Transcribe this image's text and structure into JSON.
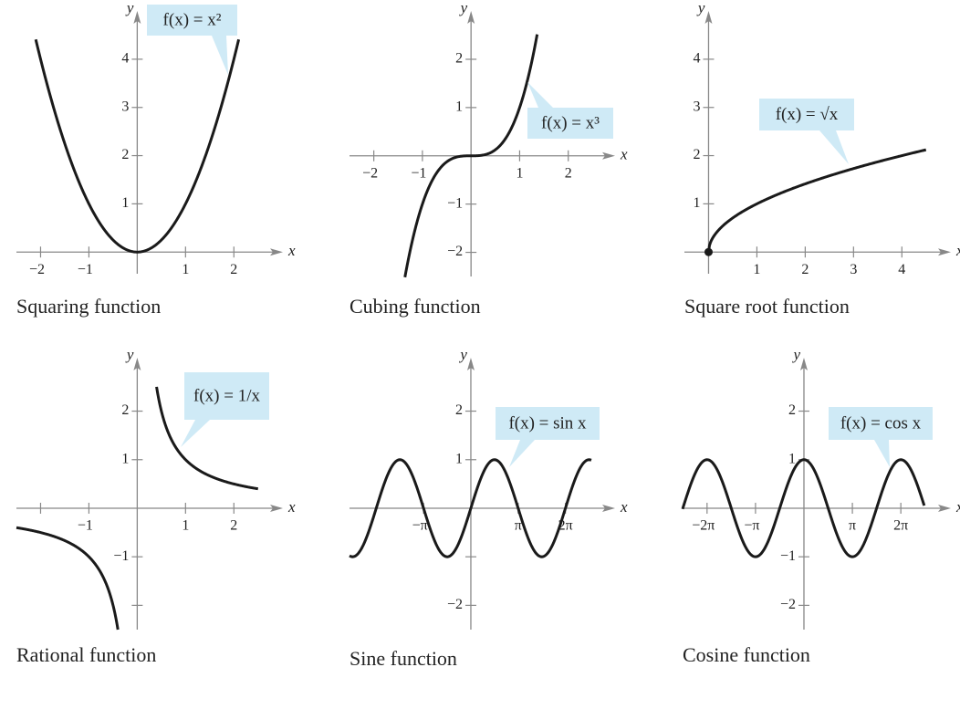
{
  "chart_data": [
    {
      "type": "function",
      "function": "square",
      "title": "Squaring function",
      "annotation": "f(x) = x²",
      "xlabel": "x",
      "ylabel": "y",
      "xlim": [
        -2.5,
        2.75
      ],
      "ylim": [
        -0.45,
        4.85
      ],
      "xticks": [
        {
          "value": -2,
          "label": "−2"
        },
        {
          "value": -1,
          "label": "−1"
        },
        1,
        2
      ],
      "yticks": [
        1,
        2,
        3,
        4
      ],
      "domain": [
        [
          -2.1,
          2.1
        ]
      ]
    },
    {
      "type": "function",
      "function": "cube",
      "title": "Cubing function",
      "annotation": "f(x) = x³",
      "xlabel": "x",
      "ylabel": "y",
      "xlim": [
        -2.5,
        2.7
      ],
      "ylim": [
        -2.5,
        2.85
      ],
      "xticks": [
        {
          "value": -2,
          "label": "−2"
        },
        {
          "value": -1,
          "label": "−1"
        },
        1,
        2
      ],
      "yticks": [
        {
          "value": -2,
          "label": "−2"
        },
        {
          "value": -1,
          "label": "−1"
        },
        1,
        2
      ],
      "domain": [
        [
          -1.36,
          1.36
        ]
      ]
    },
    {
      "type": "function",
      "function": "sqrt",
      "title": "Square root function",
      "annotation": "f(x) = √x",
      "xlabel": "x",
      "ylabel": "y",
      "xlim": [
        -0.5,
        4.75
      ],
      "ylim": [
        -0.45,
        4.85
      ],
      "xticks": [
        1,
        2,
        3,
        4
      ],
      "yticks": [
        1,
        2,
        3,
        4
      ],
      "domain": [
        [
          0,
          4.5
        ]
      ],
      "endpoint_dot": true
    },
    {
      "type": "function",
      "function": "reciprocal",
      "title": "Rational function",
      "annotation": "f(x) = 1/x",
      "xlabel": "x",
      "ylabel": "y",
      "xlim": [
        -2.5,
        2.75
      ],
      "ylim": [
        -2.5,
        2.95
      ],
      "xticks": [
        {
          "value": -2,
          "label": null
        },
        {
          "value": -1,
          "label": "−1"
        },
        1,
        2
      ],
      "yticks": [
        {
          "value": -2,
          "label": null
        },
        {
          "value": -1,
          "label": "−1"
        },
        1,
        2
      ],
      "domain": [
        [
          -2.5,
          -0.4
        ],
        [
          0.4,
          2.5
        ]
      ]
    },
    {
      "type": "function",
      "function": "sin",
      "title": "Sine function",
      "annotation": "f(x) = sin x",
      "xlabel": "x",
      "ylabel": "y",
      "xlim": [
        -8.06,
        8.73
      ],
      "ylim": [
        -2.5,
        2.95
      ],
      "xticks": [
        {
          "value": -3.14159,
          "label": "−π"
        },
        {
          "value": 3.14159,
          "label": "π"
        },
        {
          "value": 6.28319,
          "label": "2π"
        }
      ],
      "yticks": [
        {
          "value": -2,
          "label": "−2"
        },
        {
          "value": -1,
          "label": null
        },
        1,
        2
      ],
      "domain": [
        [
          -8.06,
          8.0
        ]
      ]
    },
    {
      "type": "function",
      "function": "cos",
      "title": "Cosine function",
      "annotation": "f(x) = cos x",
      "xlabel": "x",
      "ylabel": "y",
      "xlim": [
        -7.87,
        8.7
      ],
      "ylim": [
        -2.5,
        2.95
      ],
      "xticks": [
        {
          "value": -6.28319,
          "label": "−2π"
        },
        {
          "value": -3.14159,
          "label": "−π"
        },
        {
          "value": 3.14159,
          "label": "π"
        },
        {
          "value": 6.28319,
          "label": "2π"
        }
      ],
      "yticks": [
        {
          "value": -2,
          "label": "−2"
        },
        {
          "value": -1,
          "label": "−1"
        },
        1,
        2
      ],
      "domain": [
        [
          -7.87,
          7.8
        ]
      ]
    }
  ]
}
